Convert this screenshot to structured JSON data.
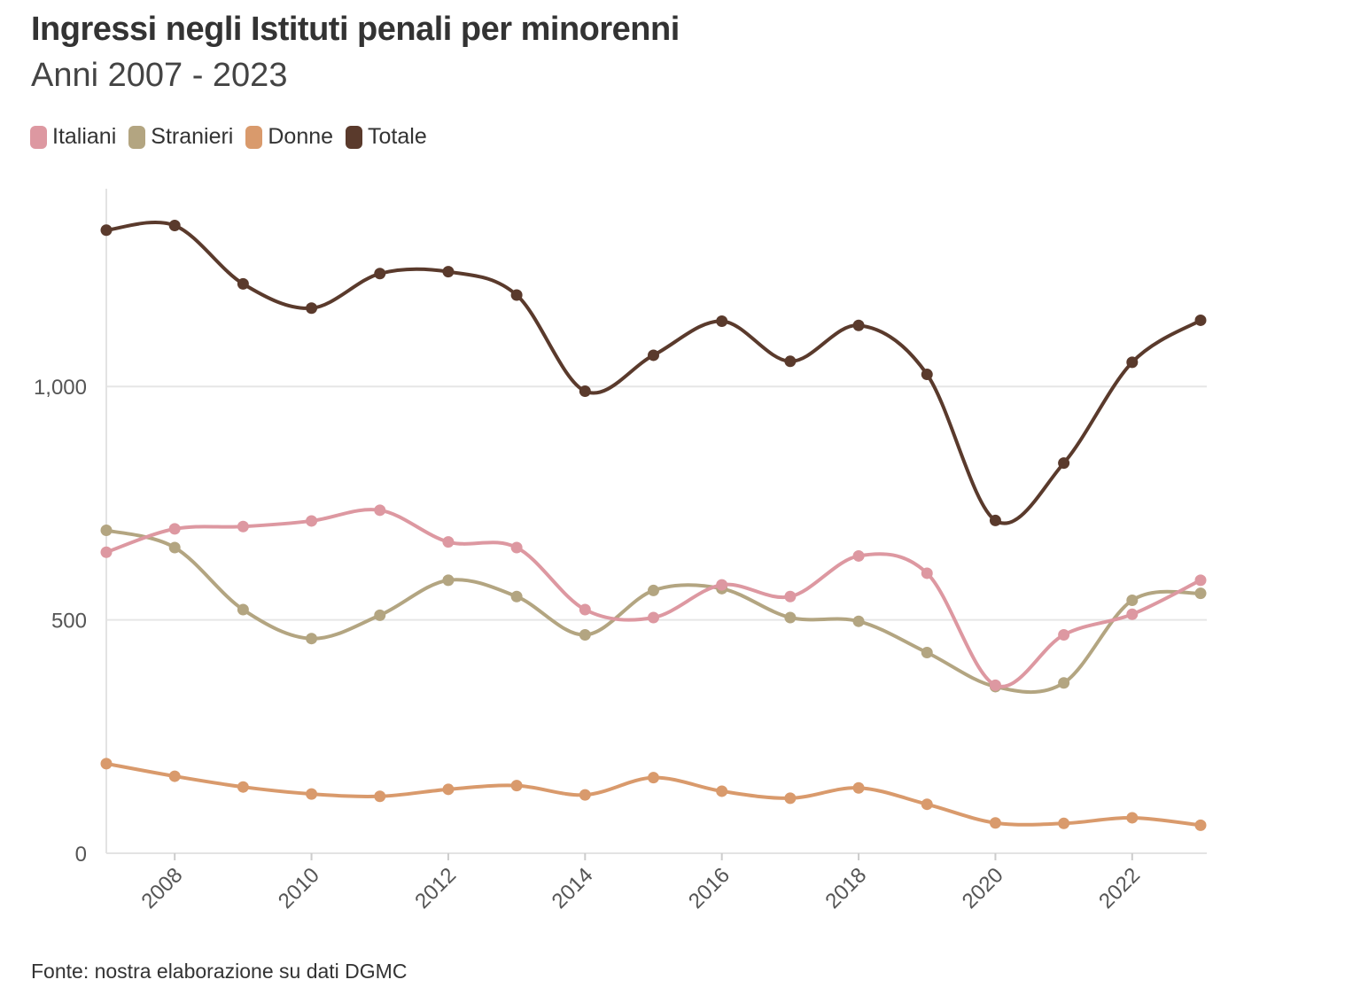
{
  "chart_data": {
    "type": "line",
    "title": "Ingressi negli Istituti penali per minorenni",
    "subtitle": "Anni 2007 - 2023",
    "xlabel": "",
    "ylabel": "",
    "x": [
      2007,
      2008,
      2009,
      2010,
      2011,
      2012,
      2013,
      2014,
      2015,
      2016,
      2017,
      2018,
      2019,
      2020,
      2021,
      2022,
      2023
    ],
    "x_ticks": [
      2008,
      2010,
      2012,
      2014,
      2016,
      2018,
      2020,
      2022
    ],
    "x_tick_labels": [
      "2008",
      "2010",
      "2012",
      "2014",
      "2016",
      "2018",
      "2020",
      "2022"
    ],
    "xlim": [
      2007,
      2023
    ],
    "y_ticks": [
      0,
      500,
      1000
    ],
    "y_tick_labels": [
      "0",
      "500",
      "1,000"
    ],
    "ylim": [
      0,
      1420
    ],
    "grid": "horizontal",
    "legend_position": "top-left",
    "series": [
      {
        "name": "Italiani",
        "color": "#dd98a1",
        "values": [
          645,
          695,
          700,
          712,
          735,
          667,
          655,
          522,
          505,
          575,
          550,
          637,
          600,
          360,
          468,
          512,
          585
        ]
      },
      {
        "name": "Stranieri",
        "color": "#b3a581",
        "values": [
          692,
          655,
          522,
          460,
          510,
          585,
          550,
          468,
          563,
          567,
          505,
          497,
          430,
          357,
          365,
          542,
          557
        ]
      },
      {
        "name": "Donne",
        "color": "#d99a6c",
        "values": [
          192,
          165,
          142,
          127,
          122,
          137,
          145,
          125,
          162,
          133,
          118,
          140,
          105,
          65,
          64,
          76,
          60
        ]
      },
      {
        "name": "Totale",
        "color": "#5a3a2c",
        "values": [
          1335,
          1345,
          1220,
          1168,
          1242,
          1246,
          1196,
          990,
          1067,
          1140,
          1054,
          1131,
          1026,
          713,
          836,
          1052,
          1142
        ]
      }
    ]
  },
  "source": "Fonte: nostra elaborazione su dati DGMC"
}
